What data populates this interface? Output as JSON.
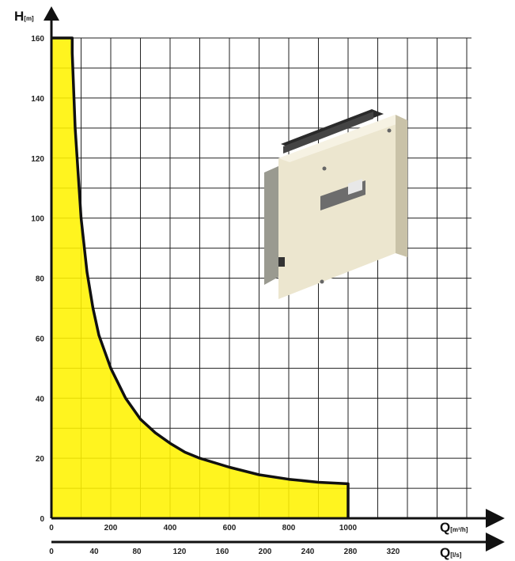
{
  "chart_data": {
    "type": "area",
    "title": "",
    "y_axis": {
      "label_main": "H",
      "label_unit": "[m]",
      "range": [
        0,
        160
      ],
      "ticks": [
        0,
        20,
        40,
        60,
        80,
        100,
        120,
        140,
        160
      ]
    },
    "x_axis_primary": {
      "label_main": "Q",
      "label_unit": "[m³/h]",
      "range": [
        0,
        1400
      ],
      "ticks": [
        0,
        200,
        400,
        600,
        800,
        1000
      ]
    },
    "x_axis_secondary": {
      "label_main": "Q",
      "label_unit": "[l/s]",
      "range": [
        0,
        388.9
      ],
      "ticks": [
        0,
        40,
        80,
        120,
        160,
        200,
        240,
        280,
        320
      ]
    },
    "grid": true,
    "colors": {
      "fill": "#fff200",
      "curve": "#111111",
      "grid": "#222222"
    },
    "series": [
      {
        "x": [
          0,
          70,
          70,
          80,
          100,
          120,
          140,
          160,
          200,
          250,
          300,
          350,
          400,
          450,
          500,
          600,
          700,
          800,
          900,
          1000
        ],
        "y": [
          160,
          160,
          155,
          130,
          100,
          82,
          70,
          61,
          50,
          40,
          33,
          28.5,
          25,
          22,
          20,
          17,
          14.5,
          13,
          12,
          11.5
        ]
      }
    ]
  },
  "product_image": {
    "subject": "controller-box"
  }
}
